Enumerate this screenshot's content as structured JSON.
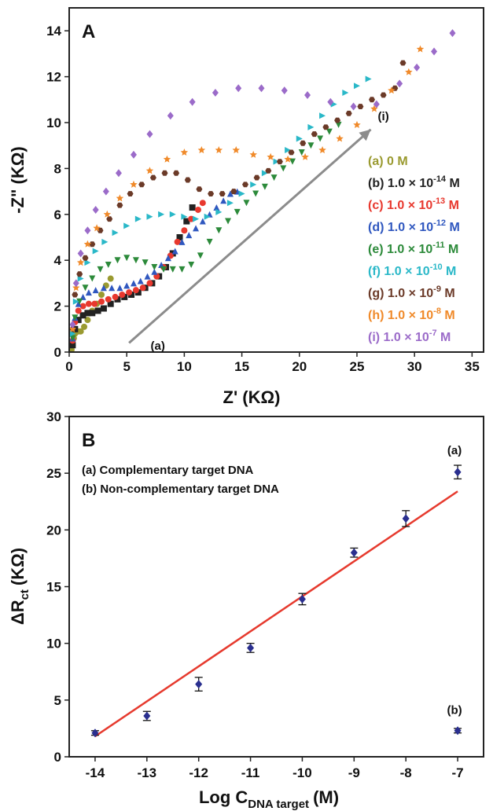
{
  "chart_data": [
    {
      "type": "scatter",
      "panel_label": "A",
      "xlabel": "Z' (KΩ)",
      "ylabel": "-Z\" (KΩ)",
      "xlim": [
        0,
        36
      ],
      "ylim": [
        0,
        15
      ],
      "x_ticks": [
        0,
        5,
        10,
        15,
        20,
        25,
        30,
        35
      ],
      "y_ticks": [
        0,
        2,
        4,
        6,
        8,
        10,
        12,
        14
      ],
      "grid": false,
      "legend_position": "right",
      "legend_exponents": [
        "",
        "-14",
        "-13",
        "-12",
        "-11",
        "-10",
        "-9",
        "-8",
        "-7"
      ],
      "series": [
        {
          "name": "(a) 0 M",
          "color": "#9a9a30",
          "marker": "circle",
          "x": [
            0.2,
            0.3,
            0.4,
            0.5,
            0.6,
            0.8,
            1.0,
            1.3,
            1.6,
            2.0,
            2.4,
            2.8,
            3.2,
            3.6
          ],
          "y": [
            0.1,
            0.3,
            0.6,
            0.8,
            0.9,
            0.9,
            0.9,
            1.1,
            1.4,
            1.8,
            2.1,
            2.5,
            2.9,
            3.2
          ]
        },
        {
          "name": "(b) 1.0 × 10-14 M",
          "color": "#222222",
          "marker": "square",
          "x": [
            0.3,
            0.5,
            0.8,
            1.2,
            1.6,
            2.0,
            2.5,
            3.0,
            3.6,
            4.2,
            4.8,
            5.4,
            6.0,
            6.6,
            7.2,
            7.8,
            8.4,
            9.0,
            9.6,
            10.2,
            10.7
          ],
          "y": [
            0.3,
            1.0,
            1.4,
            1.6,
            1.7,
            1.7,
            1.8,
            1.9,
            2.1,
            2.3,
            2.4,
            2.5,
            2.6,
            2.8,
            3.0,
            3.3,
            3.7,
            4.3,
            5.0,
            5.7,
            6.3
          ]
        },
        {
          "name": "(c) 1.0 × 10-13 M",
          "color": "#e8382e",
          "marker": "circle",
          "x": [
            0.3,
            0.5,
            0.8,
            1.2,
            1.7,
            2.2,
            2.8,
            3.4,
            4.0,
            4.6,
            5.2,
            5.8,
            6.4,
            7.0,
            7.6,
            8.2,
            8.8,
            9.4,
            10.0,
            10.6,
            11.2,
            11.6
          ],
          "y": [
            0.5,
            1.3,
            1.8,
            2.0,
            2.1,
            2.1,
            2.2,
            2.3,
            2.4,
            2.5,
            2.6,
            2.7,
            2.8,
            3.0,
            3.3,
            3.7,
            4.2,
            4.8,
            5.3,
            5.8,
            6.2,
            6.5
          ]
        },
        {
          "name": "(d) 1.0 × 10-12 M",
          "color": "#2f57bf",
          "marker": "triangle",
          "x": [
            0.3,
            0.5,
            0.8,
            1.2,
            1.7,
            2.3,
            3.0,
            3.7,
            4.4,
            5.0,
            5.6,
            6.2,
            6.8,
            7.4,
            8.0,
            8.6,
            9.2,
            9.8,
            10.4,
            11.0,
            11.6,
            12.2,
            12.8,
            13.4,
            14.0,
            14.6
          ],
          "y": [
            0.6,
            1.5,
            2.1,
            2.4,
            2.6,
            2.7,
            2.8,
            2.8,
            2.8,
            2.9,
            3.0,
            3.1,
            3.3,
            3.5,
            3.8,
            4.1,
            4.4,
            4.8,
            5.1,
            5.4,
            5.7,
            6.0,
            6.3,
            6.6,
            6.9,
            7.0
          ]
        },
        {
          "name": "(e) 1.0 × 10-11 M",
          "color": "#2c8a3a",
          "marker": "triangle-down",
          "x": [
            0.3,
            0.5,
            0.9,
            1.4,
            2.0,
            2.7,
            3.4,
            4.2,
            5.0,
            5.8,
            6.6,
            7.4,
            8.2,
            9.0,
            9.8,
            10.6,
            11.4,
            12.2,
            13.0,
            13.8,
            14.6,
            15.4,
            16.2,
            17.0,
            17.8,
            18.6,
            19.4,
            20.2,
            21.0,
            21.8,
            22.6,
            23.4
          ],
          "y": [
            0.6,
            1.5,
            2.2,
            2.8,
            3.2,
            3.6,
            3.8,
            4.0,
            4.1,
            4.0,
            3.9,
            3.7,
            3.6,
            3.6,
            3.6,
            3.8,
            4.2,
            4.8,
            5.3,
            5.7,
            6.1,
            6.5,
            6.9,
            7.2,
            7.6,
            8.0,
            8.3,
            8.7,
            9.0,
            9.3,
            9.6,
            9.9
          ]
        },
        {
          "name": "(f) 1.0 × 10-10 M",
          "color": "#2ab8c8",
          "marker": "triangle-right",
          "x": [
            0.3,
            0.6,
            1.0,
            1.6,
            2.3,
            3.1,
            4.0,
            5.0,
            6.0,
            7.0,
            8.0,
            9.0,
            10.0,
            11.0,
            12.0,
            13.0,
            14.0,
            15.0,
            16.0,
            17.0,
            18.0,
            19.0,
            20.0,
            21.0,
            22.0,
            23.0,
            24.0,
            25.0,
            26.0
          ],
          "y": [
            0.8,
            2.2,
            3.2,
            3.9,
            4.4,
            4.8,
            5.2,
            5.5,
            5.8,
            5.9,
            6.0,
            6.0,
            5.9,
            5.8,
            5.9,
            6.1,
            6.5,
            6.9,
            7.3,
            7.8,
            8.3,
            8.8,
            9.3,
            9.8,
            10.3,
            10.8,
            11.3,
            11.6,
            11.9
          ]
        },
        {
          "name": "(g) 1.0 × 10-9 M",
          "color": "#6b3a28",
          "marker": "hexagon",
          "x": [
            0.3,
            0.5,
            0.9,
            1.4,
            2.0,
            2.7,
            3.5,
            4.4,
            5.3,
            6.3,
            7.3,
            8.3,
            9.3,
            10.3,
            11.3,
            12.3,
            13.3,
            14.3,
            15.3,
            16.3,
            17.3,
            18.3,
            19.3,
            20.3,
            21.3,
            22.3,
            23.3,
            24.3,
            25.3,
            26.3,
            27.3,
            28.3,
            29.0
          ],
          "y": [
            1.0,
            2.5,
            3.4,
            4.1,
            4.7,
            5.3,
            5.8,
            6.4,
            6.9,
            7.3,
            7.6,
            7.8,
            7.8,
            7.5,
            7.1,
            6.9,
            6.9,
            7.0,
            7.3,
            7.6,
            7.9,
            8.3,
            8.7,
            9.1,
            9.5,
            9.8,
            10.1,
            10.4,
            10.7,
            11.0,
            11.2,
            11.5,
            12.6
          ]
        },
        {
          "name": "(h) 1.0 × 10-8 M",
          "color": "#f08a2a",
          "marker": "star",
          "x": [
            0.3,
            0.6,
            1.0,
            1.6,
            2.4,
            3.3,
            4.4,
            5.6,
            7.0,
            8.5,
            10.0,
            11.5,
            13.0,
            14.5,
            16.0,
            17.5,
            19.0,
            20.5,
            22.0,
            23.5,
            25.0,
            26.5,
            28.0,
            29.5,
            30.5
          ],
          "y": [
            1.0,
            2.8,
            3.9,
            4.7,
            5.4,
            6.0,
            6.7,
            7.3,
            7.9,
            8.4,
            8.7,
            8.8,
            8.8,
            8.8,
            8.6,
            8.5,
            8.4,
            8.5,
            8.8,
            9.3,
            9.9,
            10.6,
            11.4,
            12.2,
            13.2
          ]
        },
        {
          "name": "(i) 1.0 × 10-7 M",
          "color": "#9b6bc9",
          "marker": "diamond",
          "x": [
            0.3,
            0.6,
            1.0,
            1.6,
            2.3,
            3.2,
            4.3,
            5.6,
            7.0,
            8.8,
            10.7,
            12.7,
            14.7,
            16.7,
            18.7,
            20.7,
            22.7,
            24.7,
            26.7,
            28.7,
            30.2,
            31.7,
            33.3
          ],
          "y": [
            1.2,
            3.0,
            4.3,
            5.3,
            6.2,
            7.0,
            7.8,
            8.6,
            9.5,
            10.3,
            10.9,
            11.3,
            11.5,
            11.5,
            11.4,
            11.2,
            10.9,
            10.7,
            10.8,
            11.7,
            12.4,
            13.1,
            13.9
          ]
        }
      ],
      "annotations": [
        {
          "text": "(a)",
          "x": 7.7,
          "y": 0.3
        },
        {
          "text": "(i)",
          "x": 27.3,
          "y": 10.3
        }
      ],
      "arrow": {
        "from": [
          5.2,
          0.4
        ],
        "to": [
          26.2,
          9.7
        ]
      }
    },
    {
      "type": "scatter",
      "panel_label": "B",
      "xlabel": "Log C",
      "xlabel_subscript": "DNA target",
      "xlabel_unit": "(M)",
      "ylabel": "ΔR",
      "ylabel_subscript": "ct",
      "ylabel_unit": "(KΩ)",
      "xlim": [
        -14.5,
        -6.5
      ],
      "ylim": [
        0,
        30
      ],
      "x_ticks": [
        -14,
        -13,
        -12,
        -11,
        -10,
        -9,
        -8,
        -7
      ],
      "y_ticks": [
        0,
        5,
        10,
        15,
        20,
        25,
        30
      ],
      "grid": false,
      "legend_position": "top-left",
      "series": [
        {
          "name": "(a) Complementary target DNA",
          "color": "#2a2f8f",
          "marker": "diamond",
          "x": [
            -14,
            -13,
            -12,
            -11,
            -10,
            -9,
            -8,
            -7
          ],
          "y": [
            2.1,
            3.6,
            6.4,
            9.6,
            13.9,
            18.0,
            21.0,
            25.1
          ],
          "error": [
            0.2,
            0.4,
            0.6,
            0.4,
            0.5,
            0.4,
            0.7,
            0.6
          ]
        },
        {
          "name": "(b) Non-complementary target DNA",
          "color": "#2a2f8f",
          "marker": "diamond",
          "x": [
            -7
          ],
          "y": [
            2.3
          ],
          "error": [
            0.2
          ]
        }
      ],
      "fit_line": {
        "color": "#e63a2e",
        "x": [
          -14,
          -7
        ],
        "y": [
          1.8,
          23.4
        ]
      },
      "annotations": [
        {
          "text": "(a)",
          "x": -7,
          "y": 27.1
        },
        {
          "text": "(b)",
          "x": -7,
          "y": 4.2
        }
      ]
    }
  ]
}
